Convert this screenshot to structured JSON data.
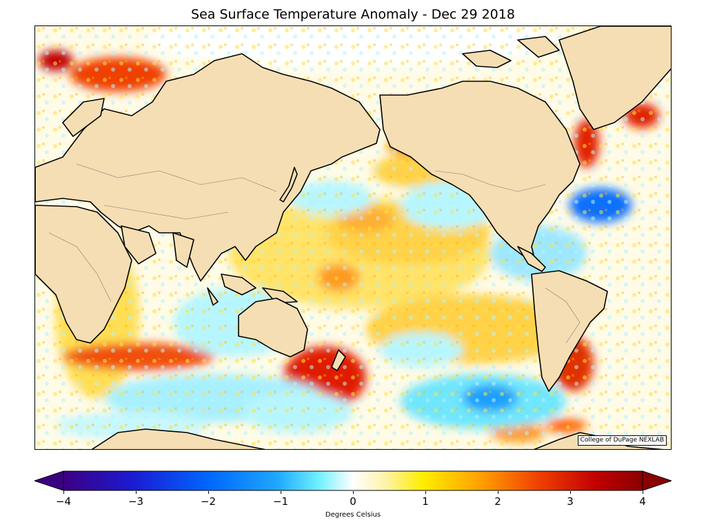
{
  "title": "Sea Surface Temperature Anomaly - Dec 29 2018",
  "credit": "College of DuPage NEXLAB",
  "colorbar": {
    "label": "Degrees Celsius",
    "min": -4,
    "max": 4,
    "ticks": [
      "−4",
      "−3",
      "−2",
      "−1",
      "0",
      "1",
      "2",
      "3",
      "4"
    ],
    "colors": [
      "#3b0082",
      "#1b1bd1",
      "#0066ff",
      "#1fa8ff",
      "#6ff0ff",
      "#ffffff",
      "#ffee00",
      "#ffa000",
      "#f04000",
      "#c00000",
      "#8b0000"
    ]
  },
  "map": {
    "land_color": "#f5deb3",
    "projection": "Mercator, Pacific-centered"
  }
}
